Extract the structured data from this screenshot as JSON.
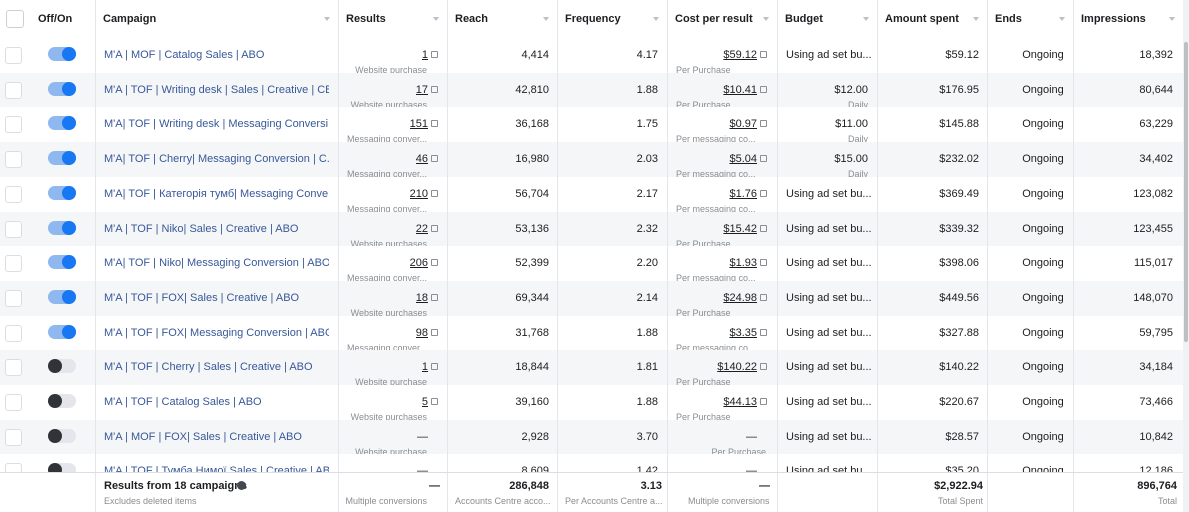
{
  "header": {
    "columns": [
      "Off/On",
      "Campaign",
      "Results",
      "Reach",
      "Frequency",
      "Cost per result",
      "Budget",
      "Amount spent",
      "Ends",
      "Impressions"
    ]
  },
  "table": {
    "rows": [
      {
        "active": true,
        "campaign": "M'A | MOF | Catalog Sales | ABO",
        "results": "1",
        "results_type": "Website purchase",
        "reach": "4,414",
        "frequency": "4.17",
        "cost": "$59.12",
        "cost_type": "Per Purchase",
        "budget": "Using ad set bu...",
        "amount_spent": "$59.12",
        "ends": "Ongoing",
        "impressions": "18,392"
      },
      {
        "active": true,
        "campaign": "M'A | TOF | Writing desk | Sales | Creative | CBO",
        "results": "17",
        "results_type": "Website purchases",
        "reach": "42,810",
        "frequency": "1.88",
        "cost": "$10.41",
        "cost_type": "Per Purchase",
        "budget": "$12.00",
        "budget_period": "Daily",
        "amount_spent": "$176.95",
        "ends": "Ongoing",
        "impressions": "80,644"
      },
      {
        "active": true,
        "campaign": "M'A| TOF | Writing desk | Messaging Conversi...",
        "results": "151",
        "results_type": "Messaging conver...",
        "reach": "36,168",
        "frequency": "1.75",
        "cost": "$0.97",
        "cost_type": "Per messaging co...",
        "budget": "$11.00",
        "budget_period": "Daily",
        "amount_spent": "$145.88",
        "ends": "Ongoing",
        "impressions": "63,229"
      },
      {
        "active": true,
        "campaign": "M'A| TOF | Cherry| Messaging Conversion | C...",
        "results": "46",
        "results_type": "Messaging conver...",
        "reach": "16,980",
        "frequency": "2.03",
        "cost": "$5.04",
        "cost_type": "Per messaging co...",
        "budget": "$15.00",
        "budget_period": "Daily",
        "amount_spent": "$232.02",
        "ends": "Ongoing",
        "impressions": "34,402"
      },
      {
        "active": true,
        "campaign": "M'A| TOF | Категорія тумб| Messaging Conve...",
        "results": "210",
        "results_type": "Messaging conver...",
        "reach": "56,704",
        "frequency": "2.17",
        "cost": "$1.76",
        "cost_type": "Per messaging co...",
        "budget": "Using ad set bu...",
        "amount_spent": "$369.49",
        "ends": "Ongoing",
        "impressions": "123,082"
      },
      {
        "active": true,
        "campaign": "M'A | TOF | Niko| Sales | Creative | ABO",
        "results": "22",
        "results_type": "Website purchases",
        "reach": "53,136",
        "frequency": "2.32",
        "cost": "$15.42",
        "cost_type": "Per Purchase",
        "budget": "Using ad set bu...",
        "amount_spent": "$339.32",
        "ends": "Ongoing",
        "impressions": "123,455"
      },
      {
        "active": true,
        "campaign": "M'A| TOF | Niko| Messaging Conversion | ABO",
        "results": "206",
        "results_type": "Messaging conver...",
        "reach": "52,399",
        "frequency": "2.20",
        "cost": "$1.93",
        "cost_type": "Per messaging co...",
        "budget": "Using ad set bu...",
        "amount_spent": "$398.06",
        "ends": "Ongoing",
        "impressions": "115,017"
      },
      {
        "active": true,
        "campaign": "M'A | TOF | FOX| Sales | Creative | ABO",
        "results": "18",
        "results_type": "Website purchases",
        "reach": "69,344",
        "frequency": "2.14",
        "cost": "$24.98",
        "cost_type": "Per Purchase",
        "budget": "Using ad set bu...",
        "amount_spent": "$449.56",
        "ends": "Ongoing",
        "impressions": "148,070"
      },
      {
        "active": true,
        "campaign": "M'A | TOF | FOX| Messaging Conversion | ABO",
        "results": "98",
        "results_type": "Messaging conver...",
        "reach": "31,768",
        "frequency": "1.88",
        "cost": "$3.35",
        "cost_type": "Per messaging co...",
        "budget": "Using ad set bu...",
        "amount_spent": "$327.88",
        "ends": "Ongoing",
        "impressions": "59,795"
      },
      {
        "active": false,
        "campaign": "M'A | TOF | Cherry | Sales | Creative | ABO",
        "results": "1",
        "results_type": "Website purchase",
        "reach": "18,844",
        "frequency": "1.81",
        "cost": "$140.22",
        "cost_type": "Per Purchase",
        "budget": "Using ad set bu...",
        "amount_spent": "$140.22",
        "ends": "Ongoing",
        "impressions": "34,184"
      },
      {
        "active": false,
        "campaign": "M'A | TOF | Catalog Sales | ABO",
        "results": "5",
        "results_type": "Website purchases",
        "reach": "39,160",
        "frequency": "1.88",
        "cost": "$44.13",
        "cost_type": "Per Purchase",
        "budget": "Using ad set bu...",
        "amount_spent": "$220.67",
        "ends": "Ongoing",
        "impressions": "73,466"
      },
      {
        "active": false,
        "campaign": "M'A | MOF | FOX| Sales | Creative | ABO",
        "results": "—",
        "results_type": "Website purchase",
        "reach": "2,928",
        "frequency": "3.70",
        "cost": "—",
        "cost_type": "Per Purchase",
        "budget": "Using ad set bu...",
        "amount_spent": "$28.57",
        "ends": "Ongoing",
        "impressions": "10,842"
      },
      {
        "active": false,
        "campaign": "M'A | TOF | Тумба Нимої Sales | Creative | ABO",
        "results": "—",
        "reach": "8,609",
        "frequency": "1.42",
        "cost": "—",
        "budget": "Using ad set bu...",
        "amount_spent": "$35.20",
        "ends": "Ongoing",
        "impressions": "12,186"
      }
    ]
  },
  "footer": {
    "label": "Results from 18 campaigns",
    "note": "Excludes deleted items",
    "results": "—",
    "results_type": "Multiple conversions",
    "reach": "286,848",
    "reach_type": "Accounts Centre acco...",
    "frequency": "3.13",
    "frequency_type": "Per Accounts Centre a...",
    "cost": "—",
    "cost_type": "Multiple conversions",
    "amount_spent": "$2,922.94",
    "amount_spent_type": "Total Spent",
    "impressions": "896,764",
    "impressions_type": "Total"
  }
}
